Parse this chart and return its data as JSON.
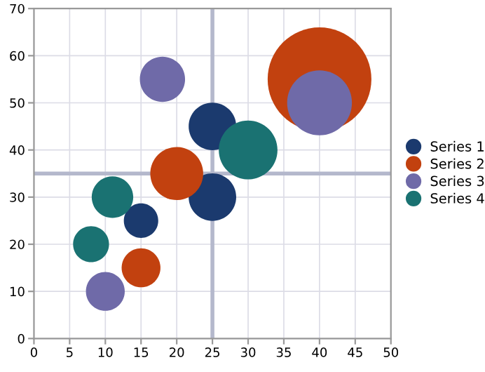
{
  "chart_data": {
    "type": "bubble",
    "xlim": [
      0,
      50
    ],
    "xticks": [
      0,
      5,
      10,
      15,
      20,
      25,
      30,
      35,
      40,
      45,
      50
    ],
    "ylim": [
      0,
      70
    ],
    "yticks": [
      0,
      10,
      20,
      30,
      40,
      50,
      60,
      70
    ],
    "grid": true,
    "legend": "right",
    "ref_lines": [
      {
        "axis": "x",
        "value": 25,
        "color": "#b4b8cc"
      },
      {
        "axis": "y",
        "value": 35,
        "color": "#b4b8cc"
      }
    ],
    "series": [
      {
        "name": "Series 1",
        "color": "#1b3a6e",
        "x": [
          15,
          25,
          25
        ],
        "values": [
          25,
          45,
          30
        ],
        "sizes": [
          0.11,
          0.21,
          0.21
        ]
      },
      {
        "name": "Series 2",
        "color": "#c2410f",
        "x": [
          15,
          20,
          40
        ],
        "values": [
          15,
          35,
          55
        ],
        "sizes": [
          0.14,
          0.26,
          1
        ]
      },
      {
        "name": "Series 3",
        "color": "#6f6aa8",
        "x": [
          10,
          18,
          40
        ],
        "values": [
          10,
          55,
          50
        ],
        "sizes": [
          0.14,
          0.19,
          0.39
        ]
      },
      {
        "name": "Series 4",
        "color": "#1a7272",
        "x": [
          8,
          11,
          30
        ],
        "values": [
          20,
          30,
          40
        ],
        "sizes": [
          0.12,
          0.16,
          0.32
        ]
      }
    ]
  }
}
